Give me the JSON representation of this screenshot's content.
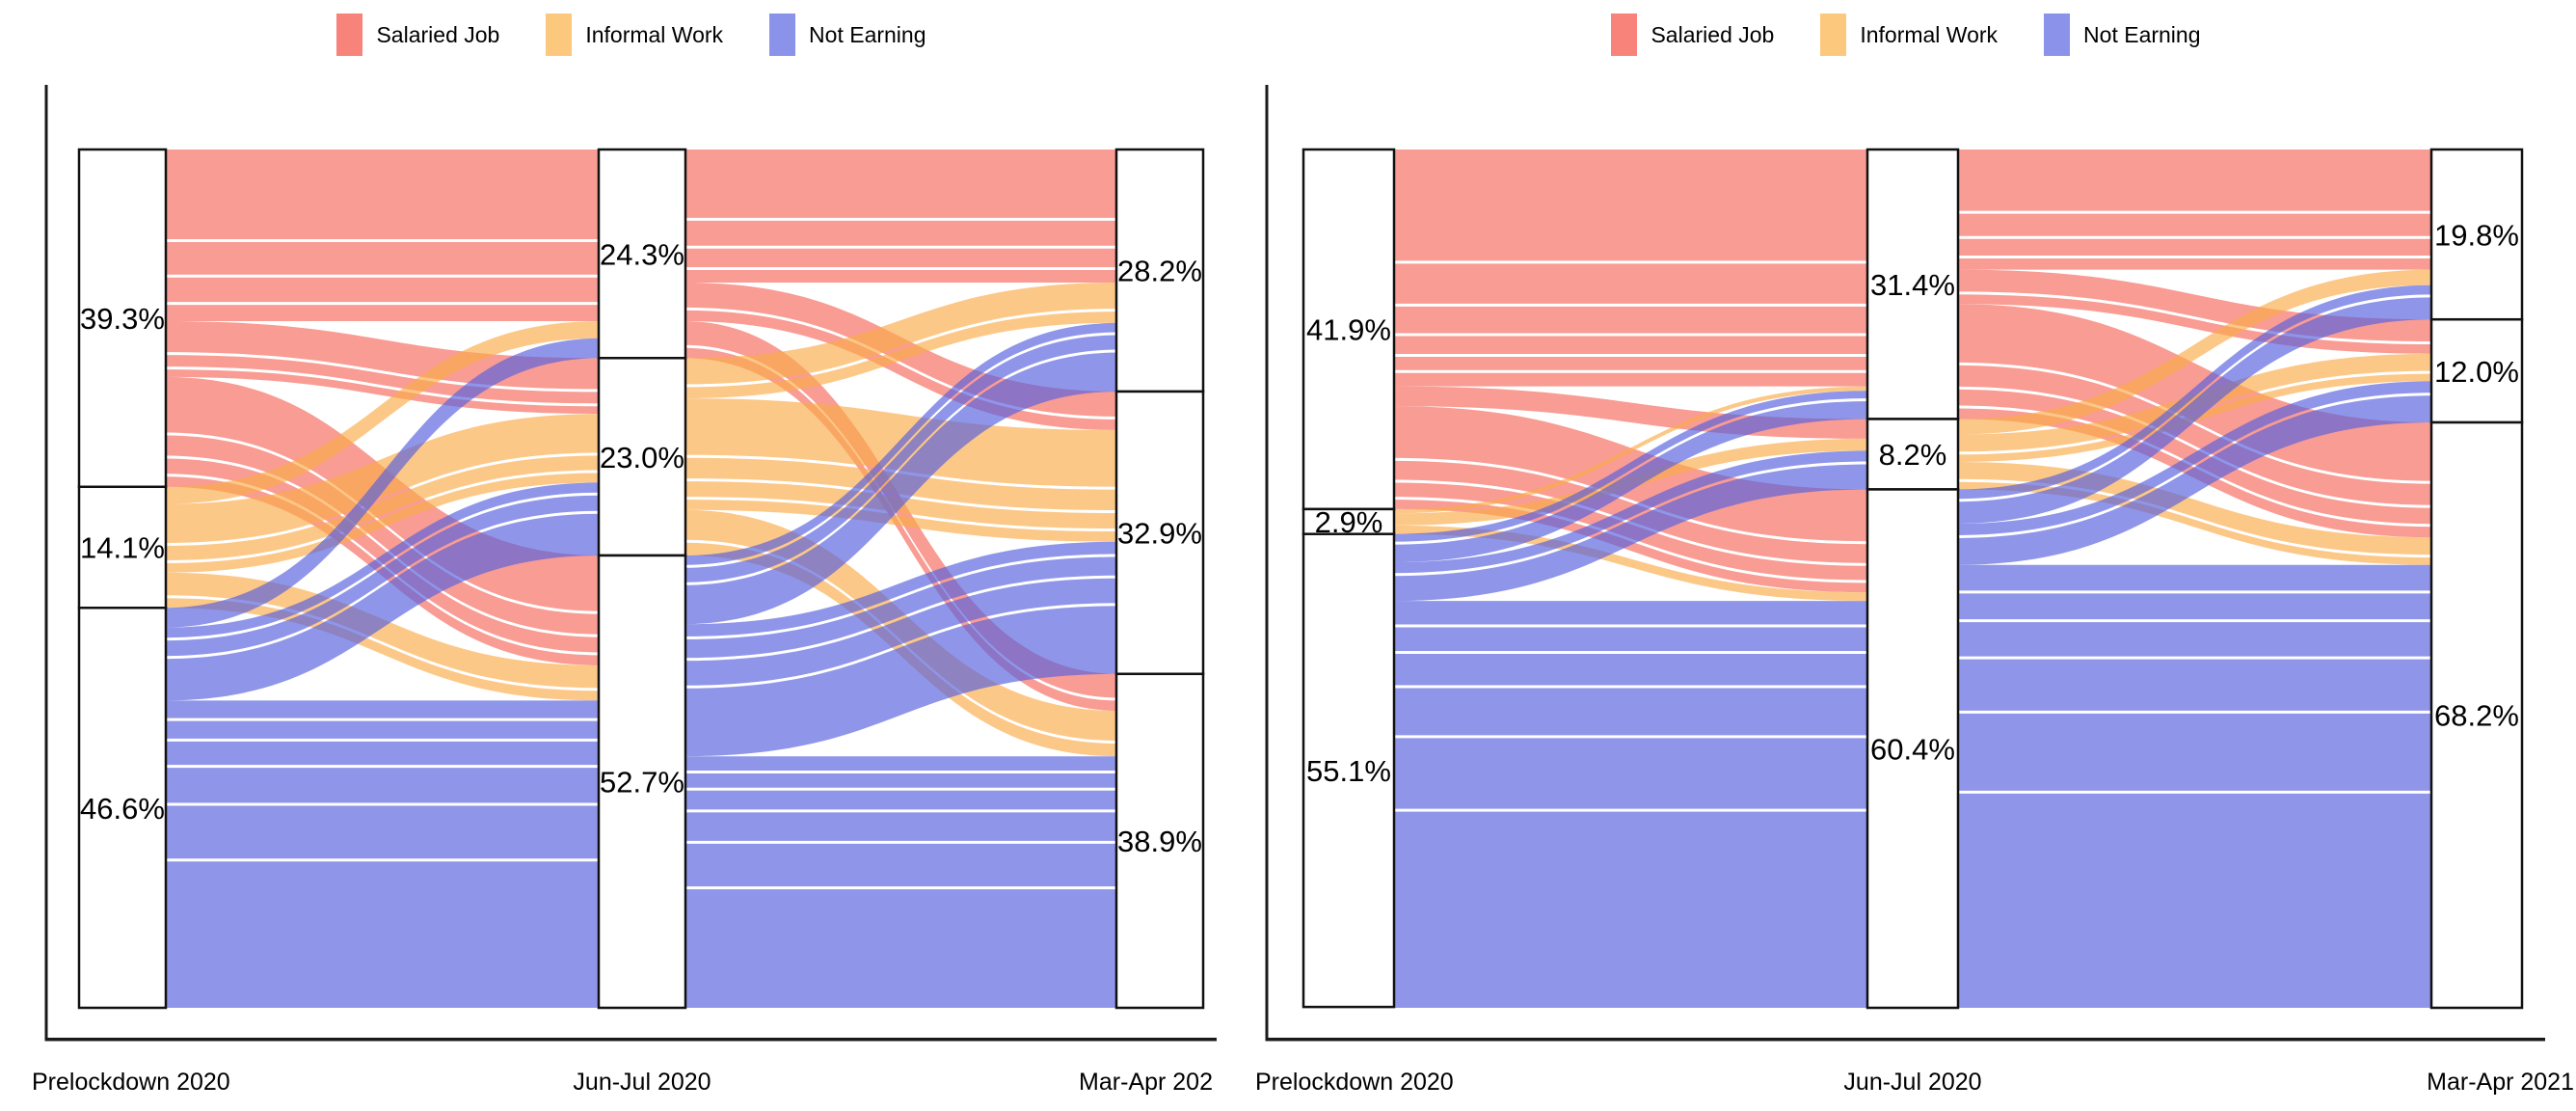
{
  "chart_data": {
    "type": "sankey",
    "subtype": "alluvial",
    "description": "Two alluvial (Sankey) diagrams of work-status transitions across three survey waves; node heights and ribbons are percentages of respondents",
    "legend": [
      {
        "label": "Salaried Job",
        "color": "#F8837B",
        "flow_color": "#F4685C"
      },
      {
        "label": "Informal Work",
        "color": "#FCC87E",
        "flow_color": "#FAAC4B"
      },
      {
        "label": "Not Earning",
        "color": "#8B92EA",
        "flow_color": "#5560DE"
      }
    ],
    "categories": [
      "Salaried Job",
      "Informal Work",
      "Not Earning"
    ],
    "flow_opacity": 0.66,
    "grid": false,
    "legend_position": "top-center",
    "panels": [
      {
        "x_labels": [
          "Prelockdown 2020",
          "Jun-Jul 2020",
          "Mar-Apr 202"
        ],
        "node_values": [
          [
            39.3,
            14.1,
            46.6
          ],
          [
            24.3,
            23.0,
            52.7
          ],
          [
            28.2,
            32.9,
            38.9
          ]
        ],
        "links_estimated": true,
        "links": [
          [
            [
              20.0,
              6.5,
              12.8
            ],
            [
              2.0,
              8.0,
              4.1
            ],
            [
              2.3,
              8.5,
              35.8
            ]
          ],
          [
            [
              15.5,
              4.5,
              4.3
            ],
            [
              4.7,
              13.0,
              5.3
            ],
            [
              8.0,
              15.4,
              29.3
            ]
          ]
        ]
      },
      {
        "x_labels": [
          "Prelockdown 2020",
          "Jun-Jul 2020",
          "Mar-Apr 2021"
        ],
        "node_values": [
          [
            41.9,
            2.9,
            55.1
          ],
          [
            31.4,
            8.2,
            60.4
          ],
          [
            19.8,
            12.0,
            68.2
          ]
        ],
        "links_estimated": true,
        "links": [
          [
            [
              27.6,
              2.3,
              12.0
            ],
            [
              0.5,
              1.4,
              1.0
            ],
            [
              3.3,
              4.5,
              47.4
            ]
          ],
          [
            [
              14.0,
              4.0,
              13.4
            ],
            [
              1.8,
              3.2,
              3.2
            ],
            [
              4.0,
              4.8,
              51.6
            ]
          ]
        ]
      }
    ],
    "node_style": {
      "fill": "#FFFFFF",
      "border": "#111111"
    },
    "axis": {
      "color": "#1A1A1A",
      "label_color": "#000000"
    }
  }
}
